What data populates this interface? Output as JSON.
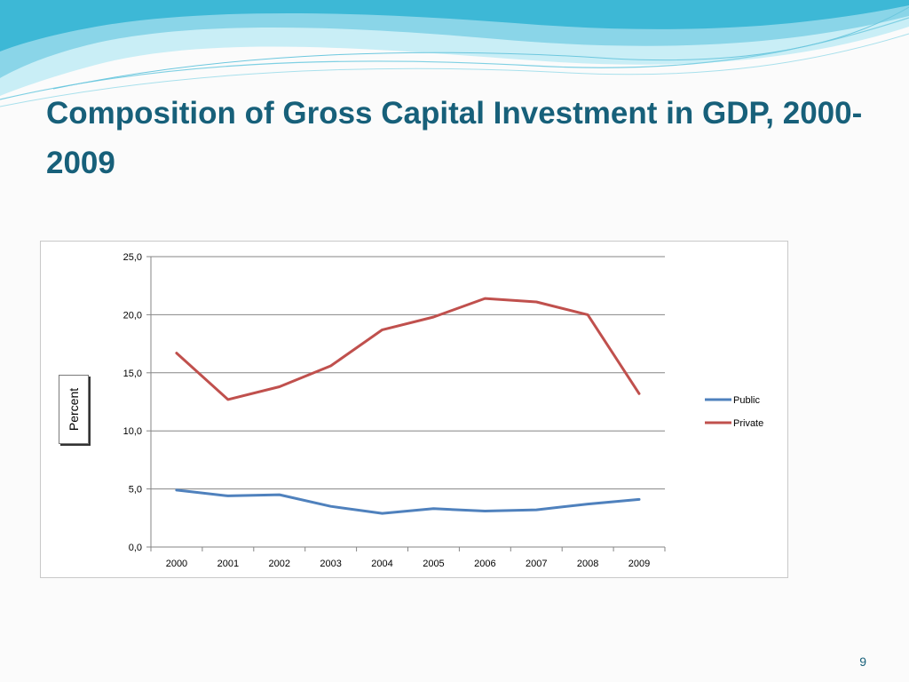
{
  "slide": {
    "title": "Composition of Gross Capital Investment in GDP, 2000-2009",
    "page_number": "9",
    "colors": {
      "title": "#17607a",
      "wave_light": "#bfe9f3",
      "wave_mid": "#8ad5e8",
      "wave_dark": "#3db8d6"
    }
  },
  "chart_data": {
    "type": "line",
    "categories": [
      "2000",
      "2001",
      "2002",
      "2003",
      "2004",
      "2005",
      "2006",
      "2007",
      "2008",
      "2009"
    ],
    "series": [
      {
        "name": "Public",
        "color": "#4f81bd",
        "values": [
          4.9,
          4.4,
          4.5,
          3.5,
          2.9,
          3.3,
          3.1,
          3.2,
          3.7,
          4.1
        ]
      },
      {
        "name": "Private",
        "color": "#c0504d",
        "values": [
          16.7,
          12.7,
          13.8,
          15.6,
          18.7,
          19.8,
          21.4,
          21.1,
          20.0,
          13.2
        ]
      }
    ],
    "ylabel": "Percent",
    "xlabel": "",
    "ylim": [
      0,
      25
    ],
    "yticks": [
      "0,0",
      "5,0",
      "10,0",
      "15,0",
      "20,0",
      "25,0"
    ],
    "grid": true,
    "legend": "right"
  }
}
